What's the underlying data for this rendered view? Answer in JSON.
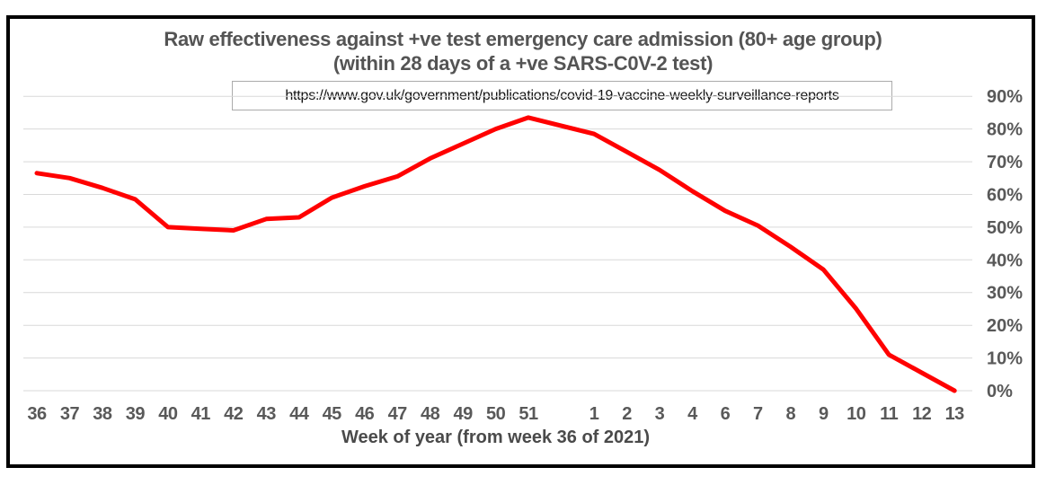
{
  "title": {
    "line1": "Raw effectiveness against +ve test emergency care admission (80+ age group)",
    "line2": "(within 28 days of a +ve SARS-C0V-2 test)"
  },
  "source_url": "https://www.gov.uk/government/publications/covid-19-vaccine-weekly-surveillance-reports",
  "chart_data": {
    "type": "line",
    "title": "Raw effectiveness against +ve test emergency care admission (80+ age group) (within 28 days of a +ve SARS-C0V-2 test)",
    "xlabel": "Week of year (from week 36 of 2021)",
    "ylabel": "",
    "categories": [
      "36",
      "37",
      "38",
      "39",
      "40",
      "41",
      "42",
      "43",
      "44",
      "45",
      "46",
      "47",
      "48",
      "49",
      "50",
      "51",
      "",
      "1",
      "2",
      "3",
      "4",
      "6",
      "7",
      "8",
      "9",
      "10",
      "11",
      "12",
      "13"
    ],
    "values": [
      66.5,
      65,
      62,
      58.5,
      50,
      49.5,
      49,
      52.5,
      53,
      59,
      62.5,
      65.5,
      71,
      75.5,
      80,
      83.5,
      null,
      78.5,
      73,
      67.5,
      61,
      55,
      50.5,
      44,
      37,
      25,
      11,
      5.5,
      0
    ],
    "series_name": "Raw effectiveness",
    "ylim": [
      0,
      90
    ],
    "ytick_step": 10,
    "ytick_labels": [
      "0%",
      "10%",
      "20%",
      "30%",
      "40%",
      "50%",
      "60%",
      "70%",
      "80%",
      "90%"
    ],
    "yaxis_side": "right",
    "grid": "horizontal",
    "legend": "none",
    "line_color": "#ff0000",
    "gridline_color": "#d9d9d9",
    "text_color": "#595959",
    "notes": "Week 52 slot is unlabeled with no data point (line interpolates); week 5 is absent from the axis."
  }
}
